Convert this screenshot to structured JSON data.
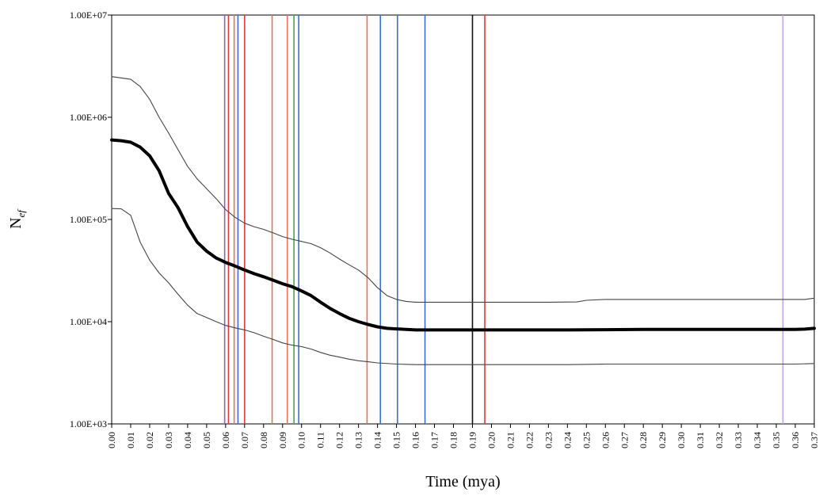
{
  "chart_data": {
    "type": "line",
    "title": "",
    "xlabel": "Time (mya)",
    "ylabel": "N",
    "ylabel_subscript": "ef",
    "ylim": [
      1000,
      10000000
    ],
    "y_scale": "log",
    "xlim": [
      0,
      0.37
    ],
    "grid": false,
    "y_ticks": [
      {
        "value": 1000,
        "label": "1.00E+03"
      },
      {
        "value": 10000,
        "label": "1.00E+04"
      },
      {
        "value": 100000,
        "label": "1.00E+05"
      },
      {
        "value": 1000000,
        "label": "1.00E+06"
      },
      {
        "value": 10000000,
        "label": "1.00E+07"
      }
    ],
    "x_ticks": [
      "0.00",
      "0.01",
      "0.02",
      "0.03",
      "0.04",
      "0.05",
      "0.06",
      "0.07",
      "0.08",
      "0.09",
      "0.10",
      "0.11",
      "0.12",
      "0.13",
      "0.14",
      "0.15",
      "0.16",
      "0.17",
      "0.18",
      "0.19",
      "0.20",
      "0.21",
      "0.22",
      "0.23",
      "0.24",
      "0.25",
      "0.26",
      "0.27",
      "0.28",
      "0.29",
      "0.30",
      "0.31",
      "0.32",
      "0.33",
      "0.34",
      "0.35",
      "0.36",
      "0.37"
    ],
    "series": [
      {
        "role": "upper",
        "color": "#444444",
        "points": [
          [
            0.0,
            2500000
          ],
          [
            0.01,
            2350000
          ],
          [
            0.015,
            2000000
          ],
          [
            0.02,
            1500000
          ],
          [
            0.025,
            1000000
          ],
          [
            0.03,
            700000
          ],
          [
            0.035,
            480000
          ],
          [
            0.04,
            330000
          ],
          [
            0.045,
            250000
          ],
          [
            0.05,
            200000
          ],
          [
            0.055,
            160000
          ],
          [
            0.06,
            125000
          ],
          [
            0.065,
            105000
          ],
          [
            0.07,
            92000
          ],
          [
            0.075,
            85000
          ],
          [
            0.08,
            80000
          ],
          [
            0.085,
            74000
          ],
          [
            0.09,
            68000
          ],
          [
            0.095,
            64000
          ],
          [
            0.1,
            61000
          ],
          [
            0.105,
            58000
          ],
          [
            0.11,
            53000
          ],
          [
            0.115,
            47000
          ],
          [
            0.12,
            41000
          ],
          [
            0.125,
            36000
          ],
          [
            0.13,
            32000
          ],
          [
            0.135,
            27000
          ],
          [
            0.14,
            21500
          ],
          [
            0.145,
            18000
          ],
          [
            0.15,
            16500
          ],
          [
            0.155,
            15800
          ],
          [
            0.16,
            15500
          ],
          [
            0.17,
            15500
          ],
          [
            0.18,
            15500
          ],
          [
            0.19,
            15500
          ],
          [
            0.2,
            15500
          ],
          [
            0.21,
            15500
          ],
          [
            0.22,
            15500
          ],
          [
            0.23,
            15500
          ],
          [
            0.245,
            15600
          ],
          [
            0.25,
            16200
          ],
          [
            0.26,
            16500
          ],
          [
            0.28,
            16500
          ],
          [
            0.3,
            16500
          ],
          [
            0.32,
            16500
          ],
          [
            0.34,
            16500
          ],
          [
            0.36,
            16500
          ],
          [
            0.365,
            16500
          ],
          [
            0.37,
            17000
          ]
        ]
      },
      {
        "role": "median",
        "color": "#000000",
        "points": [
          [
            0.0,
            600000
          ],
          [
            0.005,
            590000
          ],
          [
            0.01,
            570000
          ],
          [
            0.015,
            510000
          ],
          [
            0.02,
            420000
          ],
          [
            0.025,
            300000
          ],
          [
            0.03,
            180000
          ],
          [
            0.035,
            130000
          ],
          [
            0.04,
            85000
          ],
          [
            0.045,
            60000
          ],
          [
            0.05,
            49000
          ],
          [
            0.055,
            42000
          ],
          [
            0.06,
            38000
          ],
          [
            0.065,
            35000
          ],
          [
            0.07,
            32000
          ],
          [
            0.075,
            29500
          ],
          [
            0.08,
            27500
          ],
          [
            0.085,
            25500
          ],
          [
            0.09,
            23500
          ],
          [
            0.095,
            22000
          ],
          [
            0.1,
            20000
          ],
          [
            0.105,
            18000
          ],
          [
            0.11,
            15500
          ],
          [
            0.115,
            13500
          ],
          [
            0.12,
            12000
          ],
          [
            0.125,
            10800
          ],
          [
            0.13,
            10000
          ],
          [
            0.135,
            9400
          ],
          [
            0.14,
            8900
          ],
          [
            0.145,
            8600
          ],
          [
            0.15,
            8500
          ],
          [
            0.16,
            8300
          ],
          [
            0.17,
            8300
          ],
          [
            0.18,
            8300
          ],
          [
            0.19,
            8300
          ],
          [
            0.2,
            8300
          ],
          [
            0.22,
            8300
          ],
          [
            0.24,
            8300
          ],
          [
            0.26,
            8350
          ],
          [
            0.28,
            8400
          ],
          [
            0.3,
            8400
          ],
          [
            0.32,
            8400
          ],
          [
            0.34,
            8400
          ],
          [
            0.36,
            8400
          ],
          [
            0.365,
            8450
          ],
          [
            0.37,
            8600
          ]
        ]
      },
      {
        "role": "lower",
        "color": "#444444",
        "points": [
          [
            0.0,
            128000
          ],
          [
            0.005,
            127000
          ],
          [
            0.01,
            110000
          ],
          [
            0.015,
            60000
          ],
          [
            0.02,
            40000
          ],
          [
            0.025,
            30000
          ],
          [
            0.03,
            24000
          ],
          [
            0.035,
            18500
          ],
          [
            0.04,
            14500
          ],
          [
            0.045,
            12000
          ],
          [
            0.05,
            11000
          ],
          [
            0.055,
            10000
          ],
          [
            0.06,
            9200
          ],
          [
            0.065,
            8700
          ],
          [
            0.07,
            8300
          ],
          [
            0.075,
            7800
          ],
          [
            0.08,
            7200
          ],
          [
            0.085,
            6700
          ],
          [
            0.09,
            6200
          ],
          [
            0.095,
            5900
          ],
          [
            0.1,
            5700
          ],
          [
            0.105,
            5400
          ],
          [
            0.11,
            5000
          ],
          [
            0.115,
            4700
          ],
          [
            0.12,
            4500
          ],
          [
            0.125,
            4300
          ],
          [
            0.13,
            4150
          ],
          [
            0.135,
            4050
          ],
          [
            0.14,
            3950
          ],
          [
            0.15,
            3850
          ],
          [
            0.16,
            3800
          ],
          [
            0.18,
            3800
          ],
          [
            0.2,
            3800
          ],
          [
            0.22,
            3800
          ],
          [
            0.24,
            3800
          ],
          [
            0.26,
            3850
          ],
          [
            0.28,
            3850
          ],
          [
            0.3,
            3850
          ],
          [
            0.32,
            3850
          ],
          [
            0.34,
            3850
          ],
          [
            0.36,
            3850
          ],
          [
            0.37,
            3900
          ]
        ]
      }
    ],
    "vertical_lines": [
      {
        "x": 0.0595,
        "color": "#9b59d0"
      },
      {
        "x": 0.0615,
        "color": "#e03a3a"
      },
      {
        "x": 0.0645,
        "color": "#d97a5a"
      },
      {
        "x": 0.0665,
        "color": "#3b6fd6"
      },
      {
        "x": 0.07,
        "color": "#e03a3a"
      },
      {
        "x": 0.0845,
        "color": "#e8735a"
      },
      {
        "x": 0.0925,
        "color": "#e8735a"
      },
      {
        "x": 0.096,
        "color": "#3fae4a"
      },
      {
        "x": 0.0985,
        "color": "#3b6fd6"
      },
      {
        "x": 0.1345,
        "color": "#e8735a"
      },
      {
        "x": 0.1415,
        "color": "#3b6fd6"
      },
      {
        "x": 0.1505,
        "color": "#3b6fd6"
      },
      {
        "x": 0.165,
        "color": "#3b6fd6"
      },
      {
        "x": 0.19,
        "color": "#111111"
      },
      {
        "x": 0.1965,
        "color": "#e03a3a"
      },
      {
        "x": 0.3535,
        "color": "#b8a6e6"
      }
    ]
  }
}
